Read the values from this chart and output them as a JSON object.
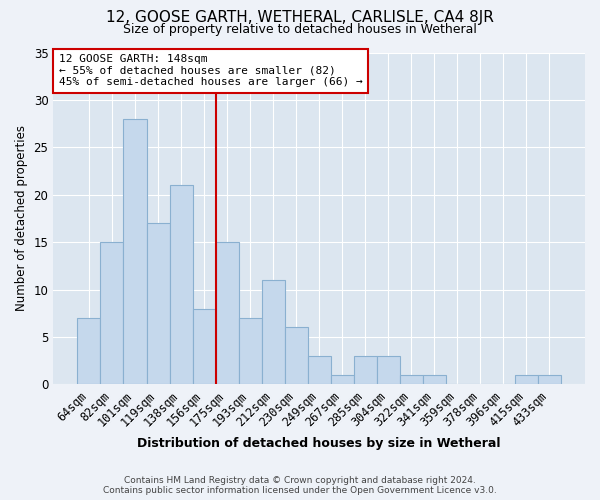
{
  "title": "12, GOOSE GARTH, WETHERAL, CARLISLE, CA4 8JR",
  "subtitle": "Size of property relative to detached houses in Wetheral",
  "xlabel": "Distribution of detached houses by size in Wetheral",
  "ylabel": "Number of detached properties",
  "categories": [
    "64sqm",
    "82sqm",
    "101sqm",
    "119sqm",
    "138sqm",
    "156sqm",
    "175sqm",
    "193sqm",
    "212sqm",
    "230sqm",
    "249sqm",
    "267sqm",
    "285sqm",
    "304sqm",
    "322sqm",
    "341sqm",
    "359sqm",
    "378sqm",
    "396sqm",
    "415sqm",
    "433sqm"
  ],
  "values": [
    7,
    15,
    28,
    17,
    21,
    8,
    15,
    7,
    11,
    6,
    3,
    1,
    3,
    3,
    1,
    1,
    0,
    0,
    0,
    1,
    1
  ],
  "bar_color": "#c5d8ec",
  "bar_edge_color": "#8ab0d0",
  "vline_x": 5.5,
  "vline_color": "#cc0000",
  "annotation_title": "12 GOOSE GARTH: 148sqm",
  "annotation_line1": "← 55% of detached houses are smaller (82)",
  "annotation_line2": "45% of semi-detached houses are larger (66) →",
  "annotation_box_edge": "#cc0000",
  "ylim": [
    0,
    35
  ],
  "yticks": [
    0,
    5,
    10,
    15,
    20,
    25,
    30,
    35
  ],
  "footer1": "Contains HM Land Registry data © Crown copyright and database right 2024.",
  "footer2": "Contains public sector information licensed under the Open Government Licence v3.0.",
  "bg_color": "#eef2f8",
  "plot_bg_color": "#dce6f0"
}
